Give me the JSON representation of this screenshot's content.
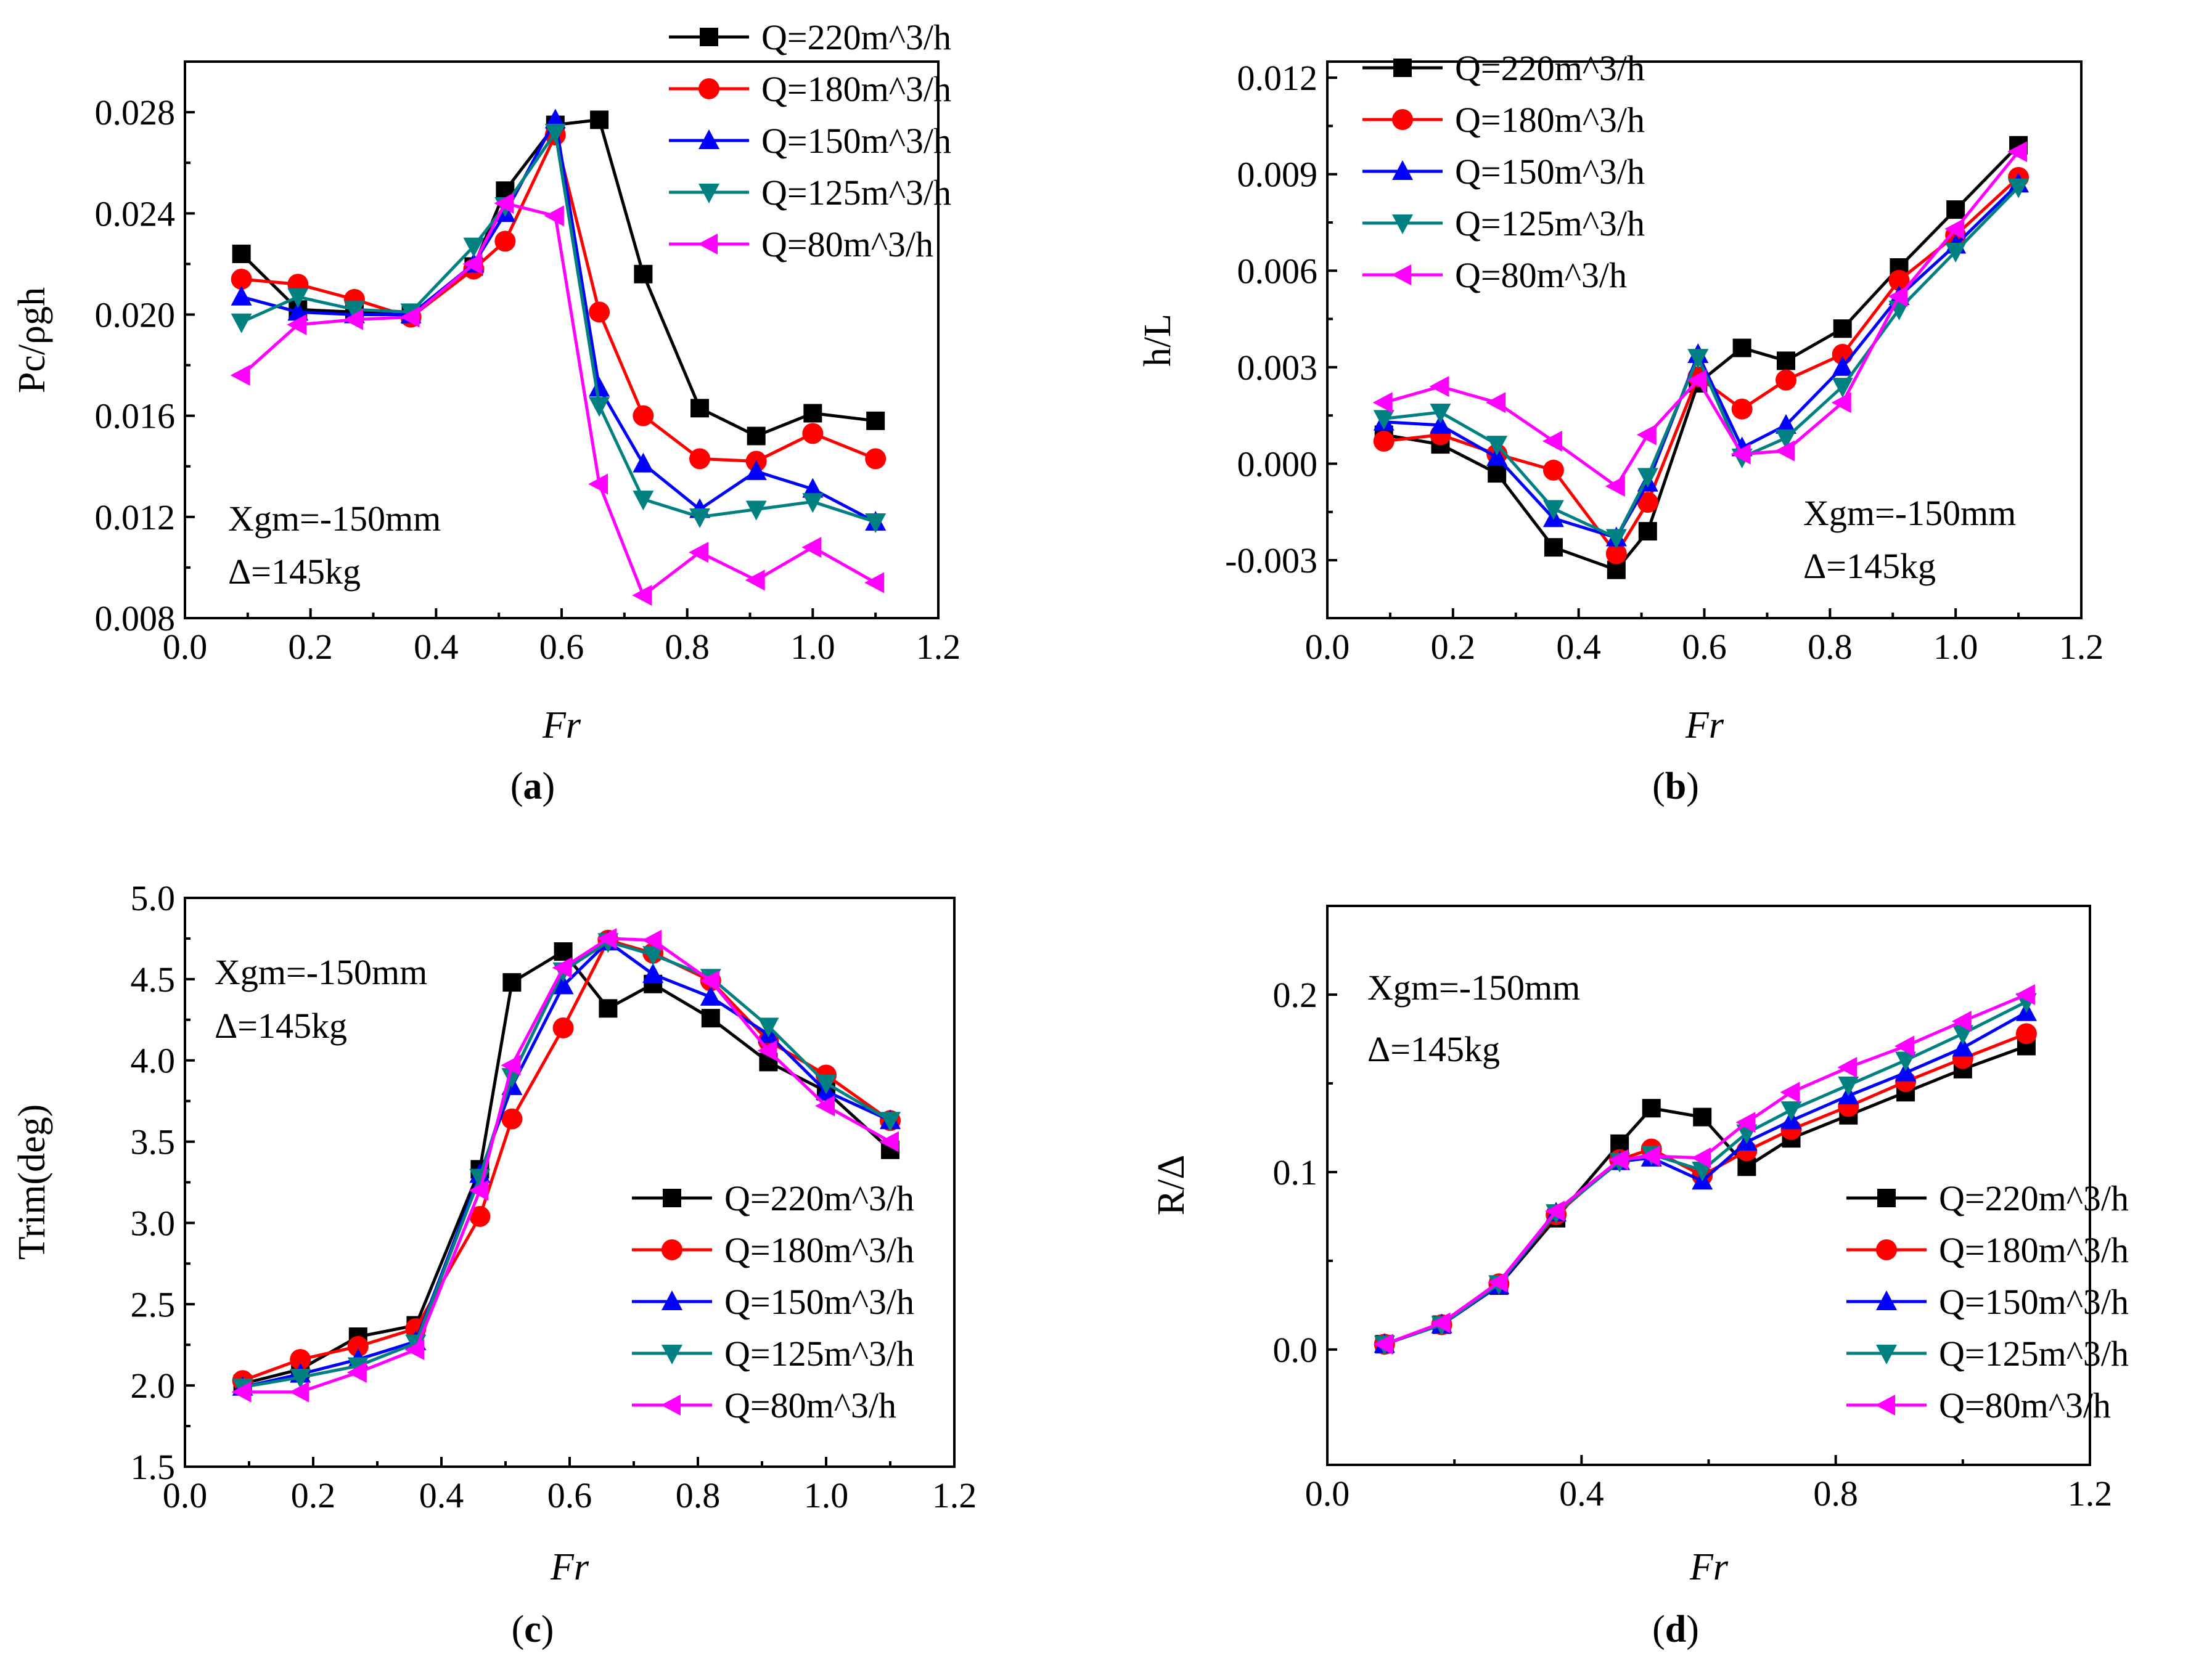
{
  "series_style": [
    {
      "name": "Q=220m^3/h",
      "color": "#000000",
      "marker": "square"
    },
    {
      "name": "Q=180m^3/h",
      "color": "#ff0000",
      "marker": "circle"
    },
    {
      "name": "Q=150m^3/h",
      "color": "#0000ff",
      "marker": "triangle-up"
    },
    {
      "name": "Q=125m^3/h",
      "color": "#008080",
      "marker": "triangle-down"
    },
    {
      "name": "Q=80m^3/h",
      "color": "#ff00ff",
      "marker": "triangle-left"
    }
  ],
  "chart_data": [
    {
      "type": "line",
      "panel": "a",
      "caption_open": "(",
      "caption_letter": "a",
      "caption_close": ")",
      "xlabel": "Fr",
      "ylabel": "Pc/ρgh",
      "xlim": [
        0.0,
        1.2
      ],
      "ylim": [
        0.008,
        0.03
      ],
      "xticks": [
        0.0,
        0.2,
        0.4,
        0.6,
        0.8,
        1.0,
        1.2
      ],
      "xtick_labels": [
        "0.0",
        "0.2",
        "0.4",
        "0.6",
        "0.8",
        "1.0",
        "1.2"
      ],
      "yticks": [
        0.008,
        0.012,
        0.016,
        0.02,
        0.024,
        0.028
      ],
      "ytick_labels": [
        "0.008",
        "0.012",
        "0.016",
        "0.020",
        "0.024",
        "0.028"
      ],
      "annotation": [
        "Xgm=-150mm",
        "Δ=145kg"
      ],
      "annotation_position": "bottom-left",
      "legend_position": "top-right",
      "series": [
        {
          "name": "Q=220m^3/h",
          "x": [
            0.09,
            0.18,
            0.27,
            0.36,
            0.46,
            0.51,
            0.59,
            0.66,
            0.73,
            0.82,
            0.91,
            1.0,
            1.1
          ],
          "y": [
            0.0224,
            0.0202,
            0.0201,
            0.02,
            0.0219,
            0.0249,
            0.0275,
            0.0277,
            0.0216,
            0.0163,
            0.0152,
            0.0161,
            0.0158
          ]
        },
        {
          "name": "Q=180m^3/h",
          "x": [
            0.09,
            0.18,
            0.27,
            0.36,
            0.46,
            0.51,
            0.59,
            0.66,
            0.73,
            0.82,
            0.91,
            1.0,
            1.1
          ],
          "y": [
            0.0214,
            0.0212,
            0.0206,
            0.0199,
            0.0218,
            0.0229,
            0.0271,
            0.0201,
            0.016,
            0.0143,
            0.0142,
            0.0153,
            0.0143
          ]
        },
        {
          "name": "Q=150m^3/h",
          "x": [
            0.09,
            0.18,
            0.27,
            0.36,
            0.46,
            0.51,
            0.59,
            0.66,
            0.73,
            0.82,
            0.91,
            1.0,
            1.1
          ],
          "y": [
            0.0207,
            0.0201,
            0.02,
            0.02,
            0.022,
            0.024,
            0.0277,
            0.0171,
            0.0141,
            0.0123,
            0.0138,
            0.0131,
            0.0118
          ]
        },
        {
          "name": "Q=125m^3/h",
          "x": [
            0.09,
            0.18,
            0.27,
            0.36,
            0.46,
            0.51,
            0.59,
            0.66,
            0.73,
            0.82,
            0.91,
            1.0,
            1.1
          ],
          "y": [
            0.0197,
            0.0207,
            0.0202,
            0.0201,
            0.0227,
            0.0243,
            0.0272,
            0.0164,
            0.0127,
            0.012,
            0.0123,
            0.0126,
            0.0118
          ]
        },
        {
          "name": "Q=80m^3/h",
          "x": [
            0.09,
            0.18,
            0.27,
            0.36,
            0.46,
            0.51,
            0.59,
            0.66,
            0.73,
            0.82,
            0.91,
            1.0,
            1.1
          ],
          "y": [
            0.0176,
            0.0196,
            0.0198,
            0.0199,
            0.022,
            0.0244,
            0.0239,
            0.0133,
            0.0089,
            0.0106,
            0.0095,
            0.0108,
            0.0094
          ]
        }
      ]
    },
    {
      "type": "line",
      "panel": "b",
      "caption_open": "(",
      "caption_letter": "b",
      "caption_close": ")",
      "xlabel": "Fr",
      "ylabel": "h/L",
      "xlim": [
        0.0,
        1.2
      ],
      "ylim": [
        -0.0048,
        0.0125
      ],
      "xticks": [
        0.0,
        0.2,
        0.4,
        0.6,
        0.8,
        1.0,
        1.2
      ],
      "xtick_labels": [
        "0.0",
        "0.2",
        "0.4",
        "0.6",
        "0.8",
        "1.0",
        "1.2"
      ],
      "yticks": [
        -0.003,
        0.0,
        0.003,
        0.006,
        0.009,
        0.012
      ],
      "ytick_labels": [
        "-0.003",
        "0.000",
        "0.003",
        "0.006",
        "0.009",
        "0.012"
      ],
      "annotation": [
        "Xgm=-150mm",
        "Δ=145kg"
      ],
      "annotation_position": "bottom-right",
      "legend_position": "top-left",
      "series": [
        {
          "name": "Q=220m^3/h",
          "x": [
            0.09,
            0.18,
            0.27,
            0.36,
            0.46,
            0.51,
            0.59,
            0.66,
            0.73,
            0.82,
            0.91,
            1.0,
            1.1
          ],
          "y": [
            0.0009,
            0.0006,
            -0.0003,
            -0.0026,
            -0.0033,
            -0.0021,
            0.0025,
            0.0036,
            0.0032,
            0.0042,
            0.0061,
            0.0079,
            0.0099
          ]
        },
        {
          "name": "Q=180m^3/h",
          "x": [
            0.09,
            0.18,
            0.27,
            0.36,
            0.46,
            0.51,
            0.59,
            0.66,
            0.73,
            0.82,
            0.91,
            1.0,
            1.1
          ],
          "y": [
            0.0007,
            0.0009,
            0.0003,
            -0.0002,
            -0.0028,
            -0.0012,
            0.0027,
            0.0017,
            0.0026,
            0.0034,
            0.0057,
            0.0071,
            0.0089
          ]
        },
        {
          "name": "Q=150m^3/h",
          "x": [
            0.09,
            0.18,
            0.27,
            0.36,
            0.46,
            0.51,
            0.59,
            0.66,
            0.73,
            0.82,
            0.91,
            1.0,
            1.1
          ],
          "y": [
            0.0013,
            0.0012,
            0.0002,
            -0.0017,
            -0.0023,
            -0.0006,
            0.0034,
            0.0005,
            0.0012,
            0.003,
            0.0052,
            0.0068,
            0.0087
          ]
        },
        {
          "name": "Q=125m^3/h",
          "x": [
            0.09,
            0.18,
            0.27,
            0.36,
            0.46,
            0.51,
            0.59,
            0.66,
            0.73,
            0.82,
            0.91,
            1.0,
            1.1
          ],
          "y": [
            0.0014,
            0.0016,
            0.0006,
            -0.0014,
            -0.0023,
            -0.0004,
            0.0033,
            0.0002,
            0.0008,
            0.0024,
            0.0048,
            0.0066,
            0.0086
          ]
        },
        {
          "name": "Q=80m^3/h",
          "x": [
            0.09,
            0.18,
            0.27,
            0.36,
            0.46,
            0.51,
            0.59,
            0.66,
            0.73,
            0.82,
            0.91,
            1.0,
            1.1
          ],
          "y": [
            0.0019,
            0.0024,
            0.0019,
            0.0007,
            -0.0007,
            0.0009,
            0.0026,
            0.0003,
            0.0004,
            0.0019,
            0.0052,
            0.0073,
            0.0097
          ]
        }
      ]
    },
    {
      "type": "line",
      "panel": "c",
      "caption_open": "(",
      "caption_letter": "c",
      "caption_close": ")",
      "xlabel": "Fr",
      "ylabel": "Trim(deg)",
      "xlim": [
        0.0,
        1.2
      ],
      "ylim": [
        1.5,
        5.0
      ],
      "xticks": [
        0.0,
        0.2,
        0.4,
        0.6,
        0.8,
        1.0,
        1.2
      ],
      "xtick_labels": [
        "0.0",
        "0.2",
        "0.4",
        "0.6",
        "0.8",
        "1.0",
        "1.2"
      ],
      "yticks": [
        1.5,
        2.0,
        2.5,
        3.0,
        3.5,
        4.0,
        4.5,
        5.0
      ],
      "ytick_labels": [
        "1.5",
        "2.0",
        "2.5",
        "3.0",
        "3.5",
        "4.0",
        "4.5",
        "5.0"
      ],
      "annotation": [
        "Xgm=-150mm",
        "Δ=145kg"
      ],
      "annotation_position": "top-left",
      "legend_position": "bottom-right",
      "series": [
        {
          "name": "Q=220m^3/h",
          "x": [
            0.09,
            0.18,
            0.27,
            0.36,
            0.46,
            0.51,
            0.59,
            0.66,
            0.73,
            0.82,
            0.91,
            1.0,
            1.1
          ],
          "y": [
            2.01,
            2.1,
            2.3,
            2.37,
            3.33,
            4.48,
            4.67,
            4.32,
            4.47,
            4.26,
            3.99,
            3.81,
            3.45
          ]
        },
        {
          "name": "Q=180m^3/h",
          "x": [
            0.09,
            0.18,
            0.27,
            0.36,
            0.46,
            0.51,
            0.59,
            0.66,
            0.73,
            0.82,
            0.91,
            1.0,
            1.1
          ],
          "y": [
            2.03,
            2.16,
            2.24,
            2.35,
            3.04,
            3.64,
            4.2,
            4.74,
            4.66,
            4.49,
            4.12,
            3.91,
            3.63
          ]
        },
        {
          "name": "Q=150m^3/h",
          "x": [
            0.09,
            0.18,
            0.27,
            0.36,
            0.46,
            0.51,
            0.59,
            0.66,
            0.73,
            0.82,
            0.91,
            1.0,
            1.1
          ],
          "y": [
            1.99,
            2.07,
            2.16,
            2.27,
            3.3,
            3.84,
            4.46,
            4.73,
            4.53,
            4.39,
            4.16,
            3.81,
            3.63
          ]
        },
        {
          "name": "Q=125m^3/h",
          "x": [
            0.09,
            0.18,
            0.27,
            0.36,
            0.46,
            0.51,
            0.59,
            0.66,
            0.73,
            0.82,
            0.91,
            1.0,
            1.1
          ],
          "y": [
            1.99,
            2.05,
            2.12,
            2.26,
            3.28,
            3.9,
            4.55,
            4.73,
            4.65,
            4.51,
            4.21,
            3.86,
            3.63
          ]
        },
        {
          "name": "Q=80m^3/h",
          "x": [
            0.09,
            0.18,
            0.27,
            0.36,
            0.46,
            0.51,
            0.59,
            0.66,
            0.73,
            0.82,
            0.91,
            1.0,
            1.1
          ],
          "y": [
            1.96,
            1.96,
            2.08,
            2.22,
            3.2,
            3.97,
            4.57,
            4.75,
            4.74,
            4.49,
            4.06,
            3.72,
            3.5
          ]
        }
      ]
    },
    {
      "type": "line",
      "panel": "d",
      "caption_open": "(",
      "caption_letter": "d",
      "caption_close": ")",
      "xlabel": "Fr",
      "ylabel": "R/Δ",
      "xlim": [
        0.0,
        1.2
      ],
      "ylim": [
        -0.065,
        0.25
      ],
      "xticks": [
        0.0,
        0.4,
        0.8,
        1.2
      ],
      "xtick_labels": [
        "0.0",
        "0.4",
        "0.8",
        "1.2"
      ],
      "yticks": [
        0.0,
        0.1,
        0.2
      ],
      "ytick_labels": [
        "0.0",
        "0.1",
        "0.2"
      ],
      "annotation": [
        "Xgm=-150mm",
        "Δ=145kg"
      ],
      "annotation_position": "top-left",
      "legend_position": "bottom-right",
      "series": [
        {
          "name": "Q=220m^3/h",
          "x": [
            0.09,
            0.18,
            0.27,
            0.36,
            0.46,
            0.51,
            0.59,
            0.66,
            0.73,
            0.82,
            0.91,
            1.0,
            1.1
          ],
          "y": [
            0.003,
            0.014,
            0.036,
            0.074,
            0.116,
            0.136,
            0.131,
            0.103,
            0.119,
            0.132,
            0.145,
            0.158,
            0.171
          ]
        },
        {
          "name": "Q=180m^3/h",
          "x": [
            0.09,
            0.18,
            0.27,
            0.36,
            0.46,
            0.51,
            0.59,
            0.66,
            0.73,
            0.82,
            0.91,
            1.0,
            1.1
          ],
          "y": [
            0.003,
            0.014,
            0.037,
            0.076,
            0.107,
            0.113,
            0.098,
            0.112,
            0.124,
            0.137,
            0.151,
            0.164,
            0.178
          ]
        },
        {
          "name": "Q=150m^3/h",
          "x": [
            0.09,
            0.18,
            0.27,
            0.36,
            0.46,
            0.51,
            0.59,
            0.66,
            0.73,
            0.82,
            0.91,
            1.0,
            1.1
          ],
          "y": [
            0.003,
            0.014,
            0.036,
            0.077,
            0.106,
            0.108,
            0.095,
            0.117,
            0.129,
            0.143,
            0.156,
            0.17,
            0.19
          ]
        },
        {
          "name": "Q=125m^3/h",
          "x": [
            0.09,
            0.18,
            0.27,
            0.36,
            0.46,
            0.51,
            0.59,
            0.66,
            0.73,
            0.82,
            0.91,
            1.0,
            1.1
          ],
          "y": [
            0.003,
            0.014,
            0.037,
            0.077,
            0.106,
            0.11,
            0.101,
            0.122,
            0.135,
            0.149,
            0.163,
            0.178,
            0.196
          ]
        },
        {
          "name": "Q=80m^3/h",
          "x": [
            0.09,
            0.18,
            0.27,
            0.36,
            0.46,
            0.51,
            0.59,
            0.66,
            0.73,
            0.82,
            0.91,
            1.0,
            1.1
          ],
          "y": [
            0.003,
            0.015,
            0.038,
            0.078,
            0.107,
            0.109,
            0.108,
            0.128,
            0.145,
            0.159,
            0.171,
            0.185,
            0.2
          ]
        }
      ]
    }
  ]
}
